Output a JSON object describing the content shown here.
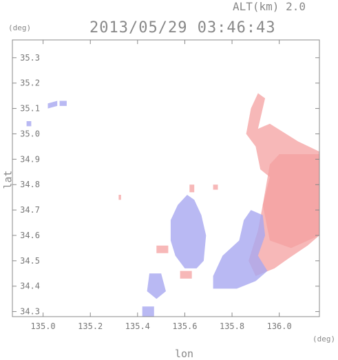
{
  "header": {
    "altitude_label": "ALT(km) 2.0",
    "timestamp": "2013/05/29 03:46:43",
    "y_unit": "(deg)",
    "x_unit": "(deg)"
  },
  "chart_data": {
    "type": "heatmap",
    "title": "2013/05/29 03:46:43",
    "subtitle": "ALT(km) 2.0",
    "xlabel": "lon",
    "ylabel": "lat",
    "x_unit": "(deg)",
    "y_unit": "(deg)",
    "xlim": [
      134.87,
      136.17
    ],
    "ylim": [
      34.28,
      35.37
    ],
    "x_ticks": [
      135.0,
      135.2,
      135.4,
      135.6,
      135.8,
      136.0
    ],
    "x_tick_labels": [
      "135.0",
      "135.2",
      "135.4",
      "135.6",
      "135.8",
      "136.0"
    ],
    "y_ticks": [
      34.3,
      34.4,
      34.5,
      34.6,
      34.7,
      34.8,
      34.9,
      35.0,
      35.1,
      35.2,
      35.3
    ],
    "y_tick_labels": [
      "34.3",
      "34.4",
      "34.5",
      "34.6",
      "34.7",
      "34.8",
      "34.9",
      "35.0",
      "35.1",
      "35.2",
      "35.3"
    ],
    "grid": false,
    "colors": {
      "positive": "#f4a0a0",
      "negative": "#a8a8f0",
      "axis": "#888888"
    },
    "regions": [
      {
        "sign": "positive",
        "polygon": [
          [
            135.94,
            35.14
          ],
          [
            135.91,
            35.02
          ],
          [
            135.96,
            35.04
          ],
          [
            136.08,
            34.97
          ],
          [
            136.17,
            34.93
          ],
          [
            136.17,
            34.6
          ],
          [
            136.12,
            34.56
          ],
          [
            136.04,
            34.51
          ],
          [
            135.98,
            34.47
          ],
          [
            135.9,
            34.44
          ],
          [
            135.87,
            34.5
          ],
          [
            135.91,
            34.62
          ],
          [
            135.93,
            34.72
          ],
          [
            135.96,
            34.83
          ],
          [
            135.92,
            34.86
          ],
          [
            135.9,
            34.95
          ],
          [
            135.86,
            35.0
          ],
          [
            135.88,
            35.1
          ],
          [
            135.91,
            35.16
          ]
        ]
      },
      {
        "sign": "positive",
        "polygon": [
          [
            136.0,
            34.92
          ],
          [
            136.17,
            34.92
          ],
          [
            136.17,
            34.6
          ],
          [
            136.05,
            34.55
          ],
          [
            135.96,
            34.58
          ],
          [
            135.93,
            34.72
          ],
          [
            135.96,
            34.88
          ]
        ]
      },
      {
        "sign": "negative",
        "polygon": [
          [
            135.88,
            34.7
          ],
          [
            135.93,
            34.68
          ],
          [
            135.94,
            34.6
          ],
          [
            135.91,
            34.52
          ],
          [
            135.95,
            34.46
          ],
          [
            135.9,
            34.42
          ],
          [
            135.82,
            34.39
          ],
          [
            135.72,
            34.39
          ],
          [
            135.72,
            34.44
          ],
          [
            135.76,
            34.52
          ],
          [
            135.83,
            34.58
          ],
          [
            135.85,
            34.66
          ]
        ]
      },
      {
        "sign": "negative",
        "polygon": [
          [
            135.61,
            34.76
          ],
          [
            135.57,
            34.72
          ],
          [
            135.54,
            34.66
          ],
          [
            135.54,
            34.58
          ],
          [
            135.56,
            34.52
          ],
          [
            135.6,
            34.47
          ],
          [
            135.65,
            34.47
          ],
          [
            135.68,
            34.5
          ],
          [
            135.69,
            34.6
          ],
          [
            135.67,
            34.68
          ],
          [
            135.64,
            34.74
          ]
        ]
      },
      {
        "sign": "negative",
        "polygon": [
          [
            135.45,
            34.45
          ],
          [
            135.5,
            34.45
          ],
          [
            135.52,
            34.38
          ],
          [
            135.48,
            34.35
          ],
          [
            135.44,
            34.38
          ]
        ]
      },
      {
        "sign": "negative",
        "polygon": [
          [
            135.42,
            34.32
          ],
          [
            135.47,
            34.32
          ],
          [
            135.47,
            34.28
          ],
          [
            135.42,
            34.28
          ]
        ]
      },
      {
        "sign": "negative",
        "polygon": [
          [
            135.02,
            35.12
          ],
          [
            135.06,
            35.13
          ],
          [
            135.06,
            35.11
          ],
          [
            135.02,
            35.1
          ]
        ]
      },
      {
        "sign": "negative",
        "polygon": [
          [
            135.07,
            35.13
          ],
          [
            135.1,
            35.13
          ],
          [
            135.1,
            35.11
          ],
          [
            135.07,
            35.11
          ]
        ]
      },
      {
        "sign": "negative",
        "polygon": [
          [
            134.93,
            35.05
          ],
          [
            134.95,
            35.05
          ],
          [
            134.95,
            35.03
          ],
          [
            134.93,
            35.03
          ]
        ]
      },
      {
        "sign": "positive",
        "polygon": [
          [
            135.48,
            34.56
          ],
          [
            135.53,
            34.56
          ],
          [
            135.53,
            34.53
          ],
          [
            135.48,
            34.53
          ]
        ]
      },
      {
        "sign": "positive",
        "polygon": [
          [
            135.58,
            34.46
          ],
          [
            135.63,
            34.46
          ],
          [
            135.63,
            34.43
          ],
          [
            135.58,
            34.43
          ]
        ]
      },
      {
        "sign": "positive",
        "polygon": [
          [
            135.62,
            34.8
          ],
          [
            135.64,
            34.8
          ],
          [
            135.64,
            34.77
          ],
          [
            135.62,
            34.77
          ]
        ]
      },
      {
        "sign": "positive",
        "polygon": [
          [
            135.72,
            34.8
          ],
          [
            135.74,
            34.8
          ],
          [
            135.74,
            34.78
          ],
          [
            135.72,
            34.78
          ]
        ]
      },
      {
        "sign": "positive",
        "polygon": [
          [
            135.32,
            34.76
          ],
          [
            135.33,
            34.76
          ],
          [
            135.33,
            34.74
          ],
          [
            135.32,
            34.74
          ]
        ]
      }
    ]
  }
}
